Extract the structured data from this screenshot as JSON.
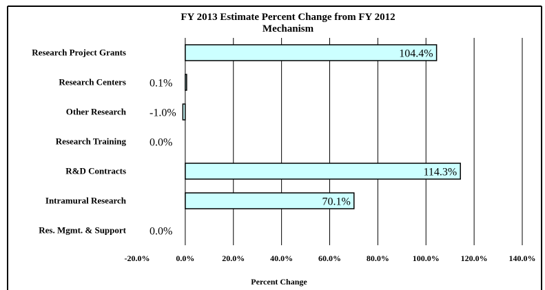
{
  "chart_data": {
    "type": "bar",
    "orientation": "horizontal",
    "title": "FY 2013 Estimate Percent Change from FY 2012",
    "subtitle": "Mechanism",
    "xlabel": "Percent Change",
    "ylabel": "",
    "xlim": [
      -20,
      140
    ],
    "x_ticks": [
      -20,
      0,
      20,
      40,
      60,
      80,
      100,
      120,
      140
    ],
    "x_tick_labels": [
      "-20.0%",
      "0.0%",
      "20.0%",
      "40.0%",
      "60.0%",
      "80.0%",
      "100.0%",
      "120.0%",
      "140.0%"
    ],
    "categories": [
      "Research Project Grants",
      "Research Centers",
      "Other Research",
      "Research Training",
      "R&D Contracts",
      "Intramural Research",
      "Res. Mgmt. & Support"
    ],
    "values": [
      104.4,
      0.1,
      -1.0,
      0.0,
      114.3,
      70.1,
      0.0
    ],
    "data_labels": [
      "104.4%",
      "0.1%",
      "-1.0%",
      "0.0%",
      "114.3%",
      "70.1%",
      "0.0%"
    ],
    "grid": "vertical major gridlines",
    "legend": "none",
    "colors": {
      "bar_fill": "#ccffff",
      "bar_stroke": "#000000",
      "gridline": "#000000",
      "frame": "#000000"
    }
  }
}
